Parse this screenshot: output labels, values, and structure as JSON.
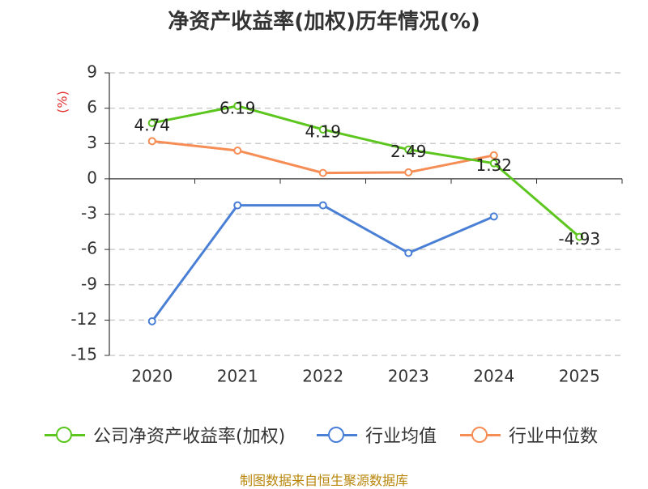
{
  "chart_data": {
    "type": "line",
    "title": "净资产收益率(加权)历年情况(%)",
    "ylabel": "(%)",
    "categories": [
      "2020",
      "2021",
      "2022",
      "2023",
      "2024",
      "2025"
    ],
    "ylim": [
      -15,
      9
    ],
    "yticks": [
      9,
      6,
      3,
      0,
      -3,
      -6,
      -9,
      -12,
      -15
    ],
    "ytick_labels": [
      "9",
      "6",
      "3",
      "0",
      "-3",
      "-6",
      "-9",
      "-12",
      "-15"
    ],
    "grid": true,
    "legend_position": "bottom",
    "series": [
      {
        "name": "公司净资产收益率(加权)",
        "color": "#5cc61e",
        "values": [
          4.74,
          6.19,
          4.19,
          2.49,
          1.32,
          -4.93
        ],
        "labels": [
          "4.74",
          "6.19",
          "4.19",
          "2.49",
          "1.32",
          "-4.93"
        ],
        "show_labels": true
      },
      {
        "name": "行业均值",
        "color": "#4a7fd6",
        "values": [
          -12.1,
          -2.25,
          -2.25,
          -6.3,
          -3.2,
          null
        ],
        "show_labels": false
      },
      {
        "name": "行业中位数",
        "color": "#f58d55",
        "values": [
          3.2,
          2.4,
          0.5,
          0.55,
          2.0,
          null
        ],
        "show_labels": false
      }
    ]
  },
  "source": "制图数据来自恒生聚源数据库"
}
